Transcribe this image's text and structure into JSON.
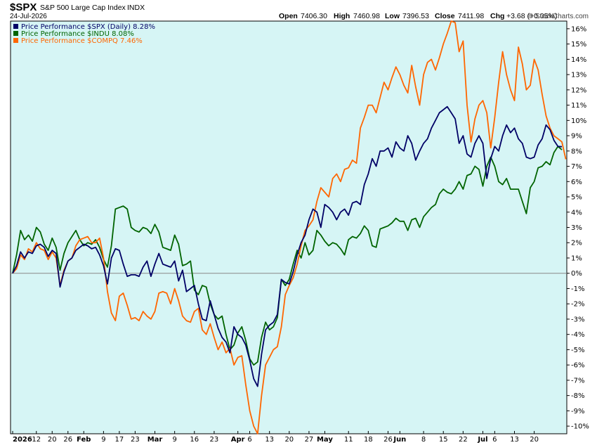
{
  "header": {
    "symbol": "$SPX",
    "name": "S&P 500 Large Cap Index",
    "exchange": "INDX",
    "date": "24-Jul-2026",
    "open_label": "Open",
    "open": "7406.30",
    "high_label": "High",
    "high": "7460.98",
    "low_label": "Low",
    "low": "7396.53",
    "close_label": "Close",
    "close": "7411.98",
    "chg_label": "Chg",
    "chg": "+3.68 (+0.05%)",
    "copyright": "© StockCharts.com"
  },
  "colors": {
    "background": "#d6f5f5",
    "spx": "#000066",
    "indu": "#006400",
    "compq": "#ff6600"
  },
  "chart_data": {
    "type": "line",
    "ylim": [
      -10.5,
      16.5
    ],
    "y_ticks": [
      16,
      15,
      14,
      13,
      12,
      11,
      10,
      9,
      8,
      7,
      6,
      5,
      4,
      3,
      2,
      1,
      0,
      -1,
      -2,
      -3,
      -4,
      -5,
      -6,
      -7,
      -8,
      -9,
      -10
    ],
    "y_tick_labels": [
      "16%",
      "15%",
      "14%",
      "13%",
      "12%",
      "11%",
      "10%",
      "9%",
      "8%",
      "7%",
      "6%",
      "5%",
      "4%",
      "3%",
      "2%",
      "1%",
      "0%",
      "-1%",
      "-2%",
      "-3%",
      "-4%",
      "-5%",
      "-6%",
      "-7%",
      "-8%",
      "-9%",
      "-10%"
    ],
    "num_points": 140,
    "x_tick_labels": [
      {
        "i": 0,
        "label": "2026",
        "bold": true
      },
      {
        "i": 6,
        "label": "12"
      },
      {
        "i": 10,
        "label": "20"
      },
      {
        "i": 14,
        "label": "26"
      },
      {
        "i": 18,
        "label": "Feb",
        "bold": true
      },
      {
        "i": 23,
        "label": "9"
      },
      {
        "i": 27,
        "label": "17"
      },
      {
        "i": 31,
        "label": "23"
      },
      {
        "i": 36,
        "label": "Mar",
        "bold": true
      },
      {
        "i": 41,
        "label": "9"
      },
      {
        "i": 46,
        "label": "16"
      },
      {
        "i": 51,
        "label": "23"
      },
      {
        "i": 57,
        "label": "Apr",
        "bold": true
      },
      {
        "i": 60,
        "label": "6"
      },
      {
        "i": 65,
        "label": "13"
      },
      {
        "i": 70,
        "label": "20"
      },
      {
        "i": 75,
        "label": "27"
      },
      {
        "i": 79,
        "label": "May",
        "bold": true
      },
      {
        "i": 85,
        "label": "11"
      },
      {
        "i": 90,
        "label": "18"
      },
      {
        "i": 95,
        "label": "26"
      },
      {
        "i": 98,
        "label": "Jun",
        "bold": true
      },
      {
        "i": 104,
        "label": "8"
      },
      {
        "i": 109,
        "label": "15"
      },
      {
        "i": 114,
        "label": "22"
      },
      {
        "i": 119,
        "label": "Jul",
        "bold": true
      },
      {
        "i": 122,
        "label": "6"
      },
      {
        "i": 127,
        "label": "13"
      },
      {
        "i": 132,
        "label": "20"
      }
    ],
    "series": [
      {
        "name": "Price Performance $SPX (Daily) 8.28%",
        "key": "spx",
        "values": [
          0,
          0.5,
          1.4,
          1.0,
          1.4,
          1.3,
          1.8,
          1.9,
          1.7,
          1.1,
          1.5,
          1.3,
          -0.9,
          0.1,
          0.8,
          1.0,
          1.5,
          1.7,
          1.9,
          1.8,
          1.6,
          1.7,
          1.2,
          0.5,
          -0.7,
          1.0,
          1.6,
          1.5,
          0.6,
          -0.2,
          -0.1,
          -0.1,
          -0.2,
          0.4,
          0.8,
          -0.2,
          0.6,
          1.3,
          0.6,
          0.5,
          0.4,
          0.8,
          -0.5,
          0.2,
          -1.2,
          -1.0,
          -0.8,
          -2.0,
          -3.0,
          -3.1,
          -1.8,
          -2.7,
          -3.6,
          -4.2,
          -4.5,
          -5.2,
          -3.5,
          -4.0,
          -4.2,
          -4.7,
          -5.7,
          -6.9,
          -7.4,
          -5.3,
          -3.7,
          -3.4,
          -3.2,
          -2.7,
          -0.4,
          -0.6,
          -0.7,
          0.1,
          1.2,
          2.0,
          2.5,
          3.5,
          4.2,
          4.0,
          3.0,
          4.5,
          4.3,
          4.0,
          3.5,
          4.0,
          4.2,
          3.8,
          4.6,
          4.7,
          4.5,
          5.8,
          6.5,
          7.5,
          7.0,
          8.0,
          8.0,
          8.2,
          7.6,
          8.6,
          8.2,
          8.0,
          9.0,
          8.5,
          7.4,
          8.0,
          8.5,
          8.8,
          9.5,
          10.0,
          10.5,
          10.7,
          10.9,
          10.5,
          10.1,
          8.5,
          9.0,
          7.8,
          7.6,
          8.5,
          9.0,
          8.5,
          6.2,
          7.5,
          8.3,
          8.0,
          9.0,
          9.7,
          9.2,
          9.5,
          8.8,
          8.5,
          7.6,
          7.5,
          7.6,
          8.4,
          8.8,
          9.7,
          9.4,
          8.7,
          8.3,
          8.28
        ]
      },
      {
        "name": "Price Performance $INDU 8.08%",
        "key": "indu",
        "values": [
          0,
          1.2,
          2.8,
          2.2,
          2.5,
          2.1,
          3.0,
          2.7,
          1.9,
          1.5,
          2.3,
          1.7,
          0.2,
          1.3,
          2.0,
          2.4,
          2.8,
          2.2,
          1.8,
          2.0,
          1.9,
          2.2,
          1.7,
          0.9,
          0.4,
          1.8,
          4.2,
          4.3,
          4.4,
          4.2,
          3.0,
          2.8,
          2.7,
          3.0,
          2.9,
          2.6,
          3.2,
          2.7,
          1.7,
          1.6,
          1.5,
          2.5,
          1.9,
          0.5,
          0.6,
          0.8,
          -1.1,
          -1.4,
          -0.8,
          -0.9,
          -2.0,
          -2.7,
          -3.0,
          -2.8,
          -4.0,
          -5.0,
          -4.7,
          -3.9,
          -3.5,
          -4.4,
          -5.6,
          -6.0,
          -5.8,
          -4.2,
          -3.2,
          -3.7,
          -3.5,
          -2.9,
          -0.4,
          -0.8,
          -0.4,
          0.6,
          1.5,
          1.0,
          2.0,
          1.2,
          1.5,
          2.8,
          2.5,
          2.1,
          1.8,
          2.0,
          1.9,
          1.6,
          1.2,
          2.2,
          2.4,
          2.3,
          2.6,
          3.1,
          2.8,
          1.8,
          1.7,
          2.9,
          3.0,
          3.1,
          3.3,
          3.6,
          3.4,
          3.4,
          2.8,
          3.5,
          3.6,
          3.0,
          3.7,
          4.0,
          4.3,
          4.5,
          5.2,
          5.5,
          5.3,
          5.2,
          5.5,
          6.0,
          5.5,
          6.4,
          6.5,
          7.0,
          6.8,
          5.7,
          7.0,
          7.6,
          7.0,
          6.0,
          5.8,
          6.2,
          5.5,
          5.5,
          5.5,
          4.7,
          3.9,
          5.6,
          6.0,
          6.9,
          7.0,
          7.3,
          7.1,
          7.9,
          8.3,
          8.08
        ]
      },
      {
        "name": "Price Performance $COMPQ 7.46%",
        "key": "compq",
        "values": [
          0,
          0.3,
          1.2,
          0.9,
          1.6,
          1.4,
          2.0,
          1.6,
          1.5,
          0.9,
          1.4,
          1.0,
          -0.8,
          0.2,
          0.8,
          1.0,
          1.8,
          2.2,
          2.3,
          2.4,
          2.0,
          2.0,
          2.3,
          1.0,
          -1.2,
          -2.6,
          -3.1,
          -1.5,
          -1.3,
          -2.1,
          -3.0,
          -2.9,
          -3.1,
          -2.5,
          -2.8,
          -3.0,
          -2.5,
          -1.3,
          -1.2,
          -1.3,
          -2.0,
          -1.0,
          -1.8,
          -2.8,
          -3.1,
          -3.2,
          -2.5,
          -2.3,
          -3.7,
          -4.0,
          -3.3,
          -4.2,
          -5.0,
          -4.5,
          -5.2,
          -4.9,
          -6.0,
          -5.5,
          -5.4,
          -7.3,
          -9.0,
          -10.0,
          -10.5,
          -8.0,
          -6.0,
          -5.5,
          -5.0,
          -4.8,
          -3.5,
          -1.4,
          -0.8,
          -0.3,
          0.6,
          1.8,
          2.8,
          3.1,
          3.5,
          4.7,
          5.6,
          5.3,
          5.0,
          6.2,
          6.5,
          6.0,
          6.8,
          6.9,
          7.4,
          7.2,
          9.5,
          10.2,
          11.0,
          11.0,
          10.5,
          11.5,
          12.5,
          12.0,
          12.8,
          13.5,
          13.0,
          12.3,
          11.8,
          13.6,
          12.2,
          11.0,
          13.0,
          13.8,
          14.0,
          13.3,
          14.1,
          15.0,
          15.7,
          16.5,
          16.4,
          14.5,
          15.2,
          11.0,
          8.6,
          10.1,
          11.0,
          11.3,
          10.5,
          8.2,
          10.2,
          12.5,
          14.5,
          13.0,
          12.0,
          11.3,
          14.8,
          13.7,
          12.0,
          12.3,
          14.0,
          13.3,
          11.7,
          10.3,
          9.5,
          9.0,
          8.8,
          8.6,
          7.46
        ]
      }
    ]
  }
}
